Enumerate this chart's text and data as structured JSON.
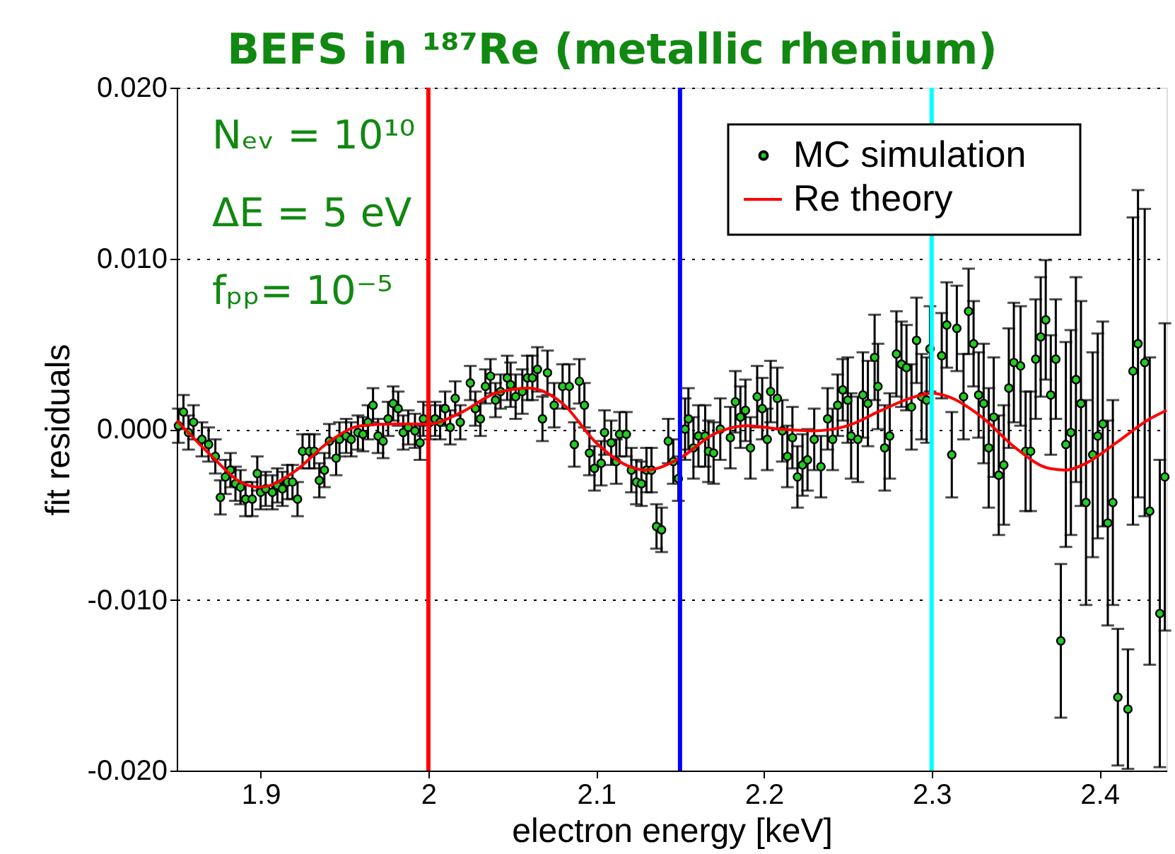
{
  "chart_data": {
    "type": "scatter",
    "title": "BEFS in ¹⁸⁷Re (metallic rhenium)",
    "xlabel": "electron energy [keV]",
    "ylabel": "fit residuals",
    "xlim": [
      1.85,
      2.44
    ],
    "xticks": [
      {
        "value": 1.9,
        "label": "1.9"
      },
      {
        "value": 2,
        "label": "2"
      },
      {
        "value": 2.1,
        "label": "2.1"
      },
      {
        "value": 2.2,
        "label": "2.2"
      },
      {
        "value": 2.3,
        "label": "2.3"
      },
      {
        "value": 2.4,
        "label": "2.4"
      }
    ],
    "ylim": [
      -0.02,
      0.02
    ],
    "yticks": [
      {
        "value": -0.02,
        "label": "-0.020"
      },
      {
        "value": -0.01,
        "label": "-0.010"
      },
      {
        "value": 0,
        "label": "0.000"
      },
      {
        "value": 0.01,
        "label": "0.010"
      },
      {
        "value": 0.02,
        "label": "0.020"
      }
    ],
    "grid": "y",
    "legend": "top right",
    "annotations": [
      "Nₑᵥ = 10¹⁰",
      "ΔE = 5 eV",
      "fₚₚ= 10⁻⁵"
    ],
    "ref_lines": [
      {
        "axis": "x",
        "value": 2.0,
        "color": "#ff0000"
      },
      {
        "axis": "x",
        "value": 2.15,
        "color": "#0000ff"
      },
      {
        "axis": "x",
        "value": 2.3,
        "color": "#00ffff"
      }
    ],
    "series": [
      {
        "name": "MC simulation",
        "color": "#22cc22",
        "marker": "circle",
        "x": [
          1.851,
          1.854,
          1.857,
          1.86,
          1.865,
          1.869,
          1.873,
          1.876,
          1.879,
          1.882,
          1.885,
          1.888,
          1.891,
          1.895,
          1.898,
          1.9,
          1.903,
          1.907,
          1.91,
          1.913,
          1.916,
          1.919,
          1.922,
          1.925,
          1.929,
          1.932,
          1.935,
          1.938,
          1.941,
          1.945,
          1.947,
          1.951,
          1.954,
          1.958,
          1.961,
          1.964,
          1.967,
          1.97,
          1.973,
          1.976,
          1.979,
          1.982,
          1.985,
          1.988,
          1.992,
          1.995,
          1.997,
          2.001,
          2.004,
          2.007,
          2.01,
          2.013,
          2.016,
          2.019,
          2.025,
          2.028,
          2.031,
          2.034,
          2.037,
          2.04,
          2.043,
          2.047,
          2.049,
          2.052,
          2.056,
          2.059,
          2.062,
          2.065,
          2.068,
          2.071,
          2.075,
          2.08,
          2.084,
          2.087,
          2.09,
          2.093,
          2.096,
          2.099,
          2.103,
          2.105,
          2.109,
          2.112,
          2.114,
          2.118,
          2.121,
          2.124,
          2.127,
          2.13,
          2.133,
          2.136,
          2.139,
          2.143,
          2.146,
          2.149,
          2.153,
          2.155,
          2.158,
          2.161,
          2.165,
          2.167,
          2.17,
          2.174,
          2.18,
          2.183,
          2.186,
          2.189,
          2.192,
          2.196,
          2.199,
          2.202,
          2.204,
          2.208,
          2.211,
          2.214,
          2.217,
          2.22,
          2.223,
          2.226,
          2.23,
          2.234,
          2.238,
          2.241,
          2.244,
          2.247,
          2.25,
          2.252,
          2.256,
          2.259,
          2.262,
          2.266,
          2.268,
          2.272,
          2.275,
          2.279,
          2.282,
          2.285,
          2.288,
          2.291,
          2.294,
          2.297,
          2.299,
          2.306,
          2.309,
          2.312,
          2.315,
          2.319,
          2.322,
          2.325,
          2.328,
          2.331,
          2.334,
          2.337,
          2.34,
          2.343,
          2.346,
          2.349,
          2.353,
          2.356,
          2.359,
          2.362,
          2.365,
          2.368,
          2.371,
          2.374,
          2.377,
          2.38,
          2.383,
          2.386,
          2.389,
          2.392,
          2.396,
          2.399,
          2.402,
          2.405,
          2.408,
          2.411,
          2.417,
          2.42,
          2.423,
          2.427,
          2.43,
          2.436,
          2.439
        ],
        "values": [
          0.0002,
          0.001,
          -0.0002,
          0.0004,
          -0.0006,
          -0.0009,
          -0.0016,
          -0.004,
          -0.0028,
          -0.0024,
          -0.0032,
          -0.0034,
          -0.0041,
          -0.0041,
          -0.0026,
          -0.0037,
          -0.0035,
          -0.0037,
          -0.0033,
          -0.0035,
          -0.0031,
          -0.0031,
          -0.0041,
          -0.0013,
          -0.0013,
          -0.0013,
          -0.003,
          -0.0024,
          -0.0007,
          -0.0017,
          -0.0006,
          -0.0004,
          -0.0006,
          -0.0002,
          -0.0003,
          0.0004,
          0.0014,
          -0.0004,
          -0.0007,
          0.0006,
          0.0015,
          0.0012,
          -0.0002,
          0.0001,
          -0.0001,
          -0.0008,
          0.0006,
          0.0004,
          0.0006,
          0.0004,
          0.0012,
          0.0001,
          0.0018,
          0.0004,
          0.0027,
          0.0012,
          0.0006,
          0.0025,
          0.0031,
          0.0017,
          0.0022,
          0.003,
          0.0026,
          0.0019,
          0.0022,
          0.003,
          0.003,
          0.0035,
          0.0006,
          0.0033,
          0.0014,
          0.0025,
          0.0025,
          -0.0009,
          0.0028,
          0.0014,
          -0.0014,
          -0.0023,
          -0.002,
          -0.0002,
          -0.0008,
          -0.0019,
          -0.0003,
          -0.0003,
          -0.0024,
          -0.0031,
          -0.0032,
          -0.0024,
          -0.0024,
          -0.0057,
          -0.0059,
          -0.0007,
          -0.0019,
          -0.0029,
          0,
          0.0006,
          -0.0011,
          -0.0004,
          -0.0004,
          -0.0013,
          -0.0014,
          0,
          -0.0005,
          0.0016,
          0.0007,
          0.0011,
          -0.0011,
          0.0019,
          0.0012,
          -0.0006,
          0.0022,
          0.0018,
          -0.0001,
          -0.0016,
          -0.0005,
          -0.0028,
          -0.0021,
          -0.0018,
          -0.0006,
          -0.0022,
          0.0006,
          -0.0006,
          0.0014,
          0.0023,
          0.0017,
          -0.0004,
          -0.0006,
          0.002,
          0.0015,
          0.0042,
          0.0025,
          -0.0011,
          -0.0004,
          0.0044,
          0.0038,
          0.0036,
          0.0013,
          0.0052,
          0.0019,
          0.0017,
          0.0047,
          0.0043,
          0.0061,
          -0.0015,
          0.0059,
          0.0019,
          0.0069,
          0.005,
          0.002,
          0.0015,
          -0.0011,
          0.0007,
          -0.0027,
          -0.0021,
          0.0024,
          0.0039,
          0.0037,
          -0.0013,
          -0.0013,
          0.0041,
          0.0054,
          0.0064,
          0.002,
          0.0041,
          -0.0124,
          -0.0009,
          -0.0002,
          0.0029,
          0.0015,
          -0.0043,
          -0.0015,
          -0.0004,
          0.0003,
          -0.0055,
          -0.0043,
          -0.0157,
          -0.0164,
          0.0034,
          0.005,
          0.0039,
          -0.0048,
          -0.0108,
          -0.0028
        ],
        "errors": [
          0.001,
          0.001,
          0.001,
          0.001,
          0.001,
          0.001,
          0.001,
          0.001,
          0.001,
          0.001,
          0.001,
          0.001,
          0.001,
          0.001,
          0.001,
          0.001,
          0.001,
          0.001,
          0.001,
          0.001,
          0.001,
          0.001,
          0.001,
          0.001,
          0.001,
          0.001,
          0.001,
          0.001,
          0.001,
          0.001,
          0.001,
          0.001,
          0.001,
          0.001,
          0.001,
          0.001,
          0.001,
          0.001,
          0.001,
          0.001,
          0.001,
          0.001,
          0.001,
          0.001,
          0.001,
          0.001,
          0.001,
          0.001,
          0.001,
          0.001,
          0.001,
          0.001,
          0.001,
          0.001,
          0.001,
          0.001,
          0.001,
          0.001,
          0.001,
          0.001,
          0.001,
          0.0013,
          0.0013,
          0.0013,
          0.0013,
          0.0013,
          0.0013,
          0.0013,
          0.0013,
          0.0013,
          0.0013,
          0.0013,
          0.0013,
          0.0013,
          0.0013,
          0.0013,
          0.0013,
          0.0013,
          0.0013,
          0.0013,
          0.0013,
          0.0013,
          0.0013,
          0.0013,
          0.0013,
          0.0013,
          0.0013,
          0.0013,
          0.0013,
          0.0013,
          0.0013,
          0.0013,
          0.0013,
          0.0013,
          0.0018,
          0.0018,
          0.0018,
          0.0018,
          0.0018,
          0.0018,
          0.0018,
          0.0018,
          0.0018,
          0.0018,
          0.0018,
          0.0018,
          0.0018,
          0.0018,
          0.0018,
          0.0018,
          0.0018,
          0.0018,
          0.0018,
          0.0018,
          0.0018,
          0.0018,
          0.0018,
          0.0018,
          0.0018,
          0.0018,
          0.0018,
          0.0018,
          0.0018,
          0.0018,
          0.0025,
          0.0025,
          0.0025,
          0.0025,
          0.0025,
          0.0025,
          0.0025,
          0.0025,
          0.0025,
          0.0025,
          0.0025,
          0.0025,
          0.0025,
          0.0025,
          0.0025,
          0.0025,
          0.0025,
          0.0025,
          0.0025,
          0.0025,
          0.0025,
          0.0025,
          0.0025,
          0.0025,
          0.0025,
          0.0035,
          0.0035,
          0.0035,
          0.0035,
          0.0035,
          0.0035,
          0.0035,
          0.0035,
          0.0035,
          0.0035,
          0.0035,
          0.0035,
          0.0035,
          0.0035,
          0.0035,
          0.0045,
          0.006,
          0.006,
          0.006,
          0.006,
          0.006,
          0.006,
          0.006,
          0.006,
          0.006,
          0.006,
          0.004,
          0.0035,
          0.009,
          0.009,
          0.009,
          0.009,
          0.009,
          0.009
        ]
      },
      {
        "name": "Re theory",
        "type": "line",
        "color": "#ff0000",
        "marker": "none",
        "x": [
          1.85,
          1.87,
          1.89,
          1.9,
          1.92,
          1.94,
          1.96,
          1.98,
          2.0,
          2.02,
          2.04,
          2.06,
          2.08,
          2.1,
          2.12,
          2.13,
          2.15,
          2.17,
          2.19,
          2.21,
          2.23,
          2.25,
          2.27,
          2.29,
          2.3,
          2.31,
          2.33,
          2.35,
          2.37,
          2.38,
          2.39,
          2.41,
          2.43,
          2.44
        ],
        "values": [
          0.0005,
          -0.0015,
          -0.0032,
          -0.0034,
          -0.0025,
          -0.0008,
          0.0002,
          0.0003,
          0.0003,
          0.001,
          0.0021,
          0.0024,
          0.0015,
          -0.0008,
          -0.0022,
          -0.0024,
          -0.0017,
          -0.0003,
          0.0002,
          0,
          -0.0001,
          0.0002,
          0.0011,
          0.0019,
          0.0021,
          0.0019,
          0.0007,
          -0.0011,
          -0.0023,
          -0.0024,
          -0.0021,
          -0.0008,
          0.0006,
          0.0011
        ]
      }
    ]
  }
}
